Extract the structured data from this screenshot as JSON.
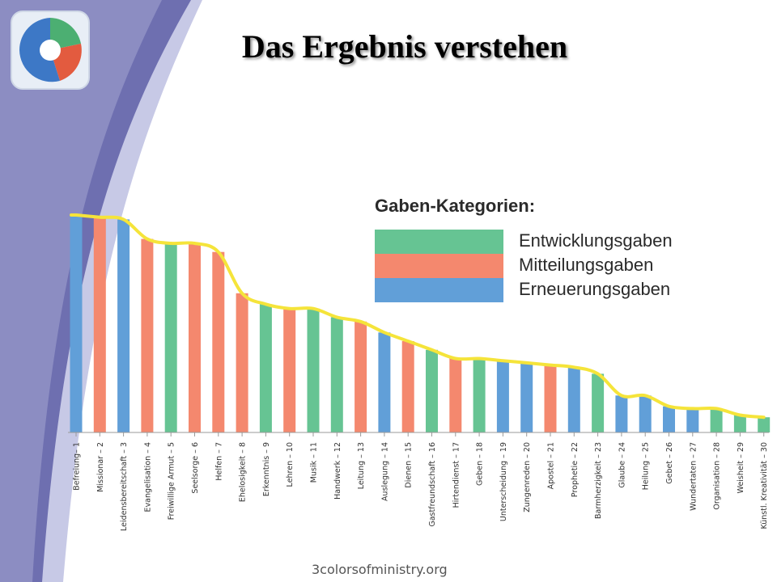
{
  "title": "Das Ergebnis verstehen",
  "footer": "3colorsofministry.org",
  "colors": {
    "entwicklung": "#66c493",
    "mitteilung": "#f4886e",
    "erneuerung": "#619fd8",
    "trend": "#f5e43a",
    "decor_dark": "#6e6fb0",
    "decor_light": "#c7c9e6"
  },
  "legend": {
    "title": "Gaben-Kategorien:",
    "items": [
      {
        "label": "Entwicklungsgaben",
        "color": "#66c493"
      },
      {
        "label": "Mitteilungsgaben",
        "color": "#f4886e"
      },
      {
        "label": "Erneuerungsgaben",
        "color": "#619fd8"
      }
    ]
  },
  "chart_data": {
    "type": "bar",
    "categories": [
      "Befreiung– 1",
      "Missionar – 2",
      "Leidensbereitschaft – 3",
      "Evangelisation – 4",
      "Freiwillige Armut – 5",
      "Seelsorge – 6",
      "Helfen – 7",
      "Ehelosigkeit – 8",
      "Erkenntnis – 9",
      "Lehren – 10",
      "Musik – 11",
      "Handwerk – 12",
      "Leitung – 13",
      "Auslegung – 14",
      "Dienen – 15",
      "Gastfreundschaft – 16",
      "Hirtendienst – 17",
      "Geben – 18",
      "Unterscheidung – 19",
      "Zungenreden – 20",
      "Apostel – 21",
      "Prophetie – 22",
      "Barmherzigkeit – 23",
      "Glaube – 24",
      "Heilung – 25",
      "Gebet – 26",
      "Wundertaten – 27",
      "Organisation – 28",
      "Weisheit – 29",
      "Künstl. Kreativität – 30"
    ],
    "values": [
      100,
      99,
      98,
      89,
      87,
      87,
      83,
      64,
      59,
      57,
      57,
      53,
      51,
      46,
      42,
      38,
      34,
      34,
      33,
      32,
      31,
      30,
      27,
      17,
      17,
      12,
      11,
      11,
      8,
      7
    ],
    "category_group": [
      "erneuerung",
      "mitteilung",
      "erneuerung",
      "mitteilung",
      "entwicklung",
      "mitteilung",
      "mitteilung",
      "mitteilung",
      "entwicklung",
      "mitteilung",
      "entwicklung",
      "entwicklung",
      "mitteilung",
      "erneuerung",
      "mitteilung",
      "entwicklung",
      "mitteilung",
      "entwicklung",
      "erneuerung",
      "erneuerung",
      "mitteilung",
      "erneuerung",
      "entwicklung",
      "erneuerung",
      "erneuerung",
      "erneuerung",
      "erneuerung",
      "entwicklung",
      "entwicklung",
      "entwicklung"
    ],
    "series": [
      {
        "name": "Entwicklungsgaben",
        "key": "entwicklung"
      },
      {
        "name": "Mitteilungsgaben",
        "key": "mitteilung"
      },
      {
        "name": "Erneuerungsgaben",
        "key": "erneuerung"
      }
    ],
    "trend_line": true,
    "ylim": [
      0,
      100
    ],
    "grid": false,
    "legend_position": "top-right",
    "xlabel": "",
    "ylabel": ""
  }
}
